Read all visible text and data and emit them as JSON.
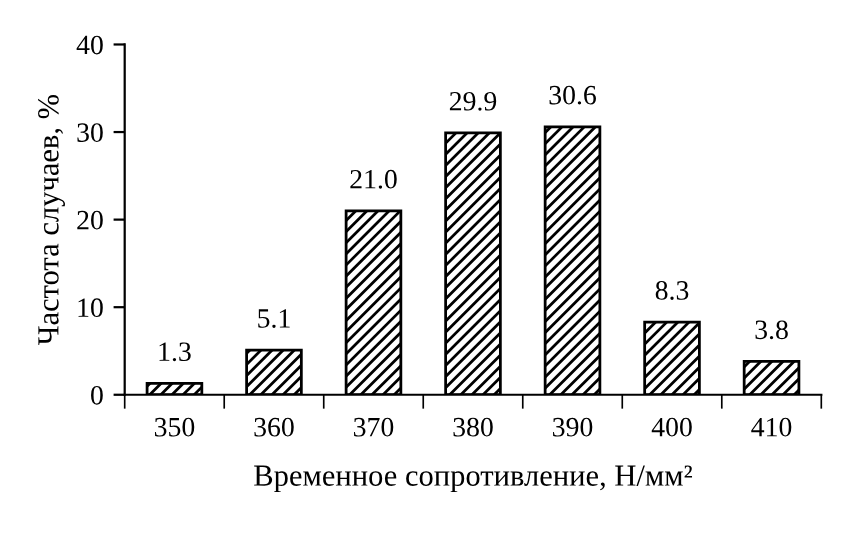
{
  "chart_data": {
    "type": "bar",
    "categories": [
      "350",
      "360",
      "370",
      "380",
      "390",
      "400",
      "410"
    ],
    "values": [
      1.3,
      5.1,
      21.0,
      29.9,
      30.6,
      8.3,
      3.8
    ],
    "value_labels": [
      "1.3",
      "5.1",
      "21.0",
      "29.9",
      "30.6",
      "8.3",
      "3.8"
    ],
    "color": "#000000",
    "xlabel": "Временное сопротивление, Н/мм²",
    "ylabel": "Частота случаев, %",
    "ylim": [
      0,
      40
    ],
    "yticks": [
      0,
      10,
      20,
      30,
      40
    ],
    "grid": false,
    "legend": false
  }
}
